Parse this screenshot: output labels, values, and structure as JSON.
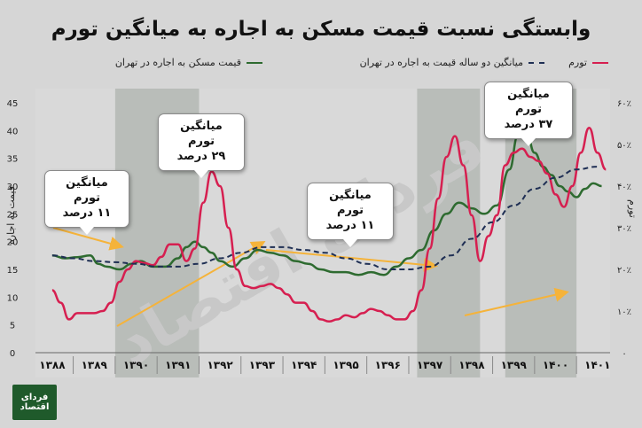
{
  "title": "وابستگی نسبت قیمت مسکن به اجاره به میانگین تورم",
  "logo_text": "فردای اقتصاد",
  "legend": {
    "inflation": "تورم",
    "avg": "میانگین دو ساله قیمت به اجاره در تهران",
    "ratio": "قیمت مسکن به اجاره در تهران"
  },
  "ylabel_left": "قیمت به اجاره",
  "ylabel_right": "تورم",
  "callouts": [
    {
      "line1": "میانگین تورم",
      "line2": "۱۱ درصد"
    },
    {
      "line1": "میانگین تورم",
      "line2": "۲۹ درصد"
    },
    {
      "line1": "میانگین تورم",
      "line2": "۱۱ درصد"
    },
    {
      "line1": "میانگین تورم",
      "line2": "۳۷ درصد"
    }
  ],
  "colors": {
    "inflation": "#d61f50",
    "ratio": "#2e6b30",
    "avg": "#1f2f54",
    "arrow": "#f5b33a",
    "bg_light": "#d9d9d9",
    "bg_dark": "#b9bdb9"
  },
  "chart_data": {
    "type": "line",
    "x_tick_labels": [
      "۱۳۸۸",
      "۱۳۸۹",
      "۱۳۹۰",
      "۱۳۹۱",
      "۱۳۹۲",
      "۱۳۹۳",
      "۱۳۹۴",
      "۱۳۹۵",
      "۱۳۹۶",
      "۱۳۹۷",
      "۱۳۹۸",
      "۱۳۹۹",
      "۱۴۰۰",
      "۱۴۰۱"
    ],
    "y_left_ticks": [
      "0",
      "5",
      "10",
      "15",
      "20",
      "25",
      "30",
      "35",
      "40",
      "45"
    ],
    "y_left_range": [
      0,
      45
    ],
    "y_right_ticks": [
      "۰",
      "۱۰٪",
      "۲۰٪",
      "۳۰٪",
      "۴۰٪",
      "۵۰٪",
      "۶۰٪"
    ],
    "y_right_range": [
      0,
      60
    ],
    "shaded_periods": [
      [
        1389.5,
        1391.5
      ],
      [
        1396.7,
        1398.2
      ],
      [
        1398.8,
        1400.5
      ]
    ],
    "series": [
      {
        "name": "قیمت مسکن به اجاره در تهران",
        "axis": "left",
        "x": [
          1388.0,
          1388.3,
          1388.6,
          1388.9,
          1389.1,
          1389.3,
          1389.6,
          1389.9,
          1390.1,
          1390.4,
          1390.7,
          1391.0,
          1391.2,
          1391.4,
          1391.6,
          1391.8,
          1392.0,
          1392.3,
          1392.6,
          1392.9,
          1393.2,
          1393.5,
          1393.8,
          1394.1,
          1394.4,
          1394.7,
          1395.0,
          1395.3,
          1395.6,
          1395.9,
          1396.2,
          1396.5,
          1396.8,
          1397.1,
          1397.4,
          1397.7,
          1398.0,
          1398.3,
          1398.6,
          1398.9,
          1399.1,
          1399.3,
          1399.5,
          1399.7,
          1399.9,
          1400.1,
          1400.3,
          1400.5,
          1400.7,
          1400.9,
          1401.1
        ],
        "values": [
          17.5,
          17.0,
          17.2,
          17.5,
          16.0,
          15.5,
          15.0,
          16.0,
          16.5,
          15.5,
          15.5,
          17.0,
          19.0,
          20.0,
          19.0,
          18.0,
          16.5,
          15.5,
          17.0,
          18.5,
          18.0,
          17.5,
          16.5,
          16.0,
          15.0,
          14.5,
          14.5,
          14.0,
          14.5,
          14.0,
          15.5,
          17.0,
          18.5,
          22.0,
          25.0,
          27.0,
          26.0,
          25.0,
          26.5,
          33.0,
          39.0,
          40.0,
          36.0,
          33.5,
          32.0,
          30.0,
          29.0,
          28.0,
          29.5,
          30.5,
          30.0
        ]
      },
      {
        "name": "تورم",
        "axis": "right",
        "x": [
          1388.0,
          1388.2,
          1388.4,
          1388.6,
          1388.8,
          1389.0,
          1389.2,
          1389.4,
          1389.6,
          1389.8,
          1390.0,
          1390.2,
          1390.4,
          1390.6,
          1390.8,
          1391.0,
          1391.2,
          1391.4,
          1391.6,
          1391.8,
          1392.0,
          1392.2,
          1392.4,
          1392.6,
          1392.8,
          1393.0,
          1393.2,
          1393.4,
          1393.6,
          1393.8,
          1394.0,
          1394.2,
          1394.4,
          1394.6,
          1394.8,
          1395.0,
          1395.2,
          1395.4,
          1395.6,
          1395.8,
          1396.0,
          1396.2,
          1396.4,
          1396.6,
          1396.8,
          1397.0,
          1397.2,
          1397.4,
          1397.6,
          1397.8,
          1398.0,
          1398.2,
          1398.4,
          1398.6,
          1398.8,
          1399.0,
          1399.2,
          1399.4,
          1399.6,
          1399.8,
          1400.0,
          1400.2,
          1400.4,
          1400.6,
          1400.8,
          1401.0,
          1401.2
        ],
        "values": [
          15.0,
          12.0,
          8.0,
          9.5,
          9.5,
          9.5,
          10.0,
          12.0,
          17.0,
          20.0,
          22.0,
          21.5,
          21.0,
          23.0,
          26.0,
          26.0,
          22.0,
          25.0,
          36.0,
          43.5,
          40.0,
          30.0,
          20.0,
          16.0,
          15.5,
          16.0,
          16.5,
          15.5,
          14.0,
          12.0,
          12.0,
          10.0,
          8.0,
          7.5,
          8.0,
          9.0,
          8.5,
          9.5,
          10.5,
          10.0,
          9.0,
          8.0,
          8.0,
          10.0,
          15.0,
          25.0,
          37.0,
          47.0,
          52.0,
          45.0,
          33.0,
          22.0,
          28.0,
          33.0,
          45.0,
          48.0,
          49.0,
          47.0,
          46.0,
          43.0,
          38.0,
          35.0,
          40.0,
          48.0,
          54.0,
          48.0,
          44.0
        ]
      },
      {
        "name": "میانگین دو ساله قیمت به اجاره در تهران",
        "axis": "left",
        "x": [
          1388.0,
          1388.5,
          1389.0,
          1389.5,
          1390.0,
          1390.5,
          1391.0,
          1391.5,
          1392.0,
          1392.5,
          1393.0,
          1393.5,
          1394.0,
          1394.5,
          1395.0,
          1395.5,
          1396.0,
          1396.5,
          1397.0,
          1397.5,
          1398.0,
          1398.5,
          1399.0,
          1399.5,
          1400.0,
          1400.5,
          1401.0
        ],
        "values": [
          17.5,
          17.0,
          16.5,
          16.3,
          16.0,
          15.5,
          15.5,
          16.0,
          17.0,
          18.0,
          19.0,
          19.0,
          18.5,
          18.0,
          17.0,
          16.0,
          15.0,
          15.0,
          15.5,
          17.5,
          20.5,
          23.5,
          26.5,
          29.5,
          31.5,
          33.0,
          33.5
        ]
      }
    ]
  }
}
